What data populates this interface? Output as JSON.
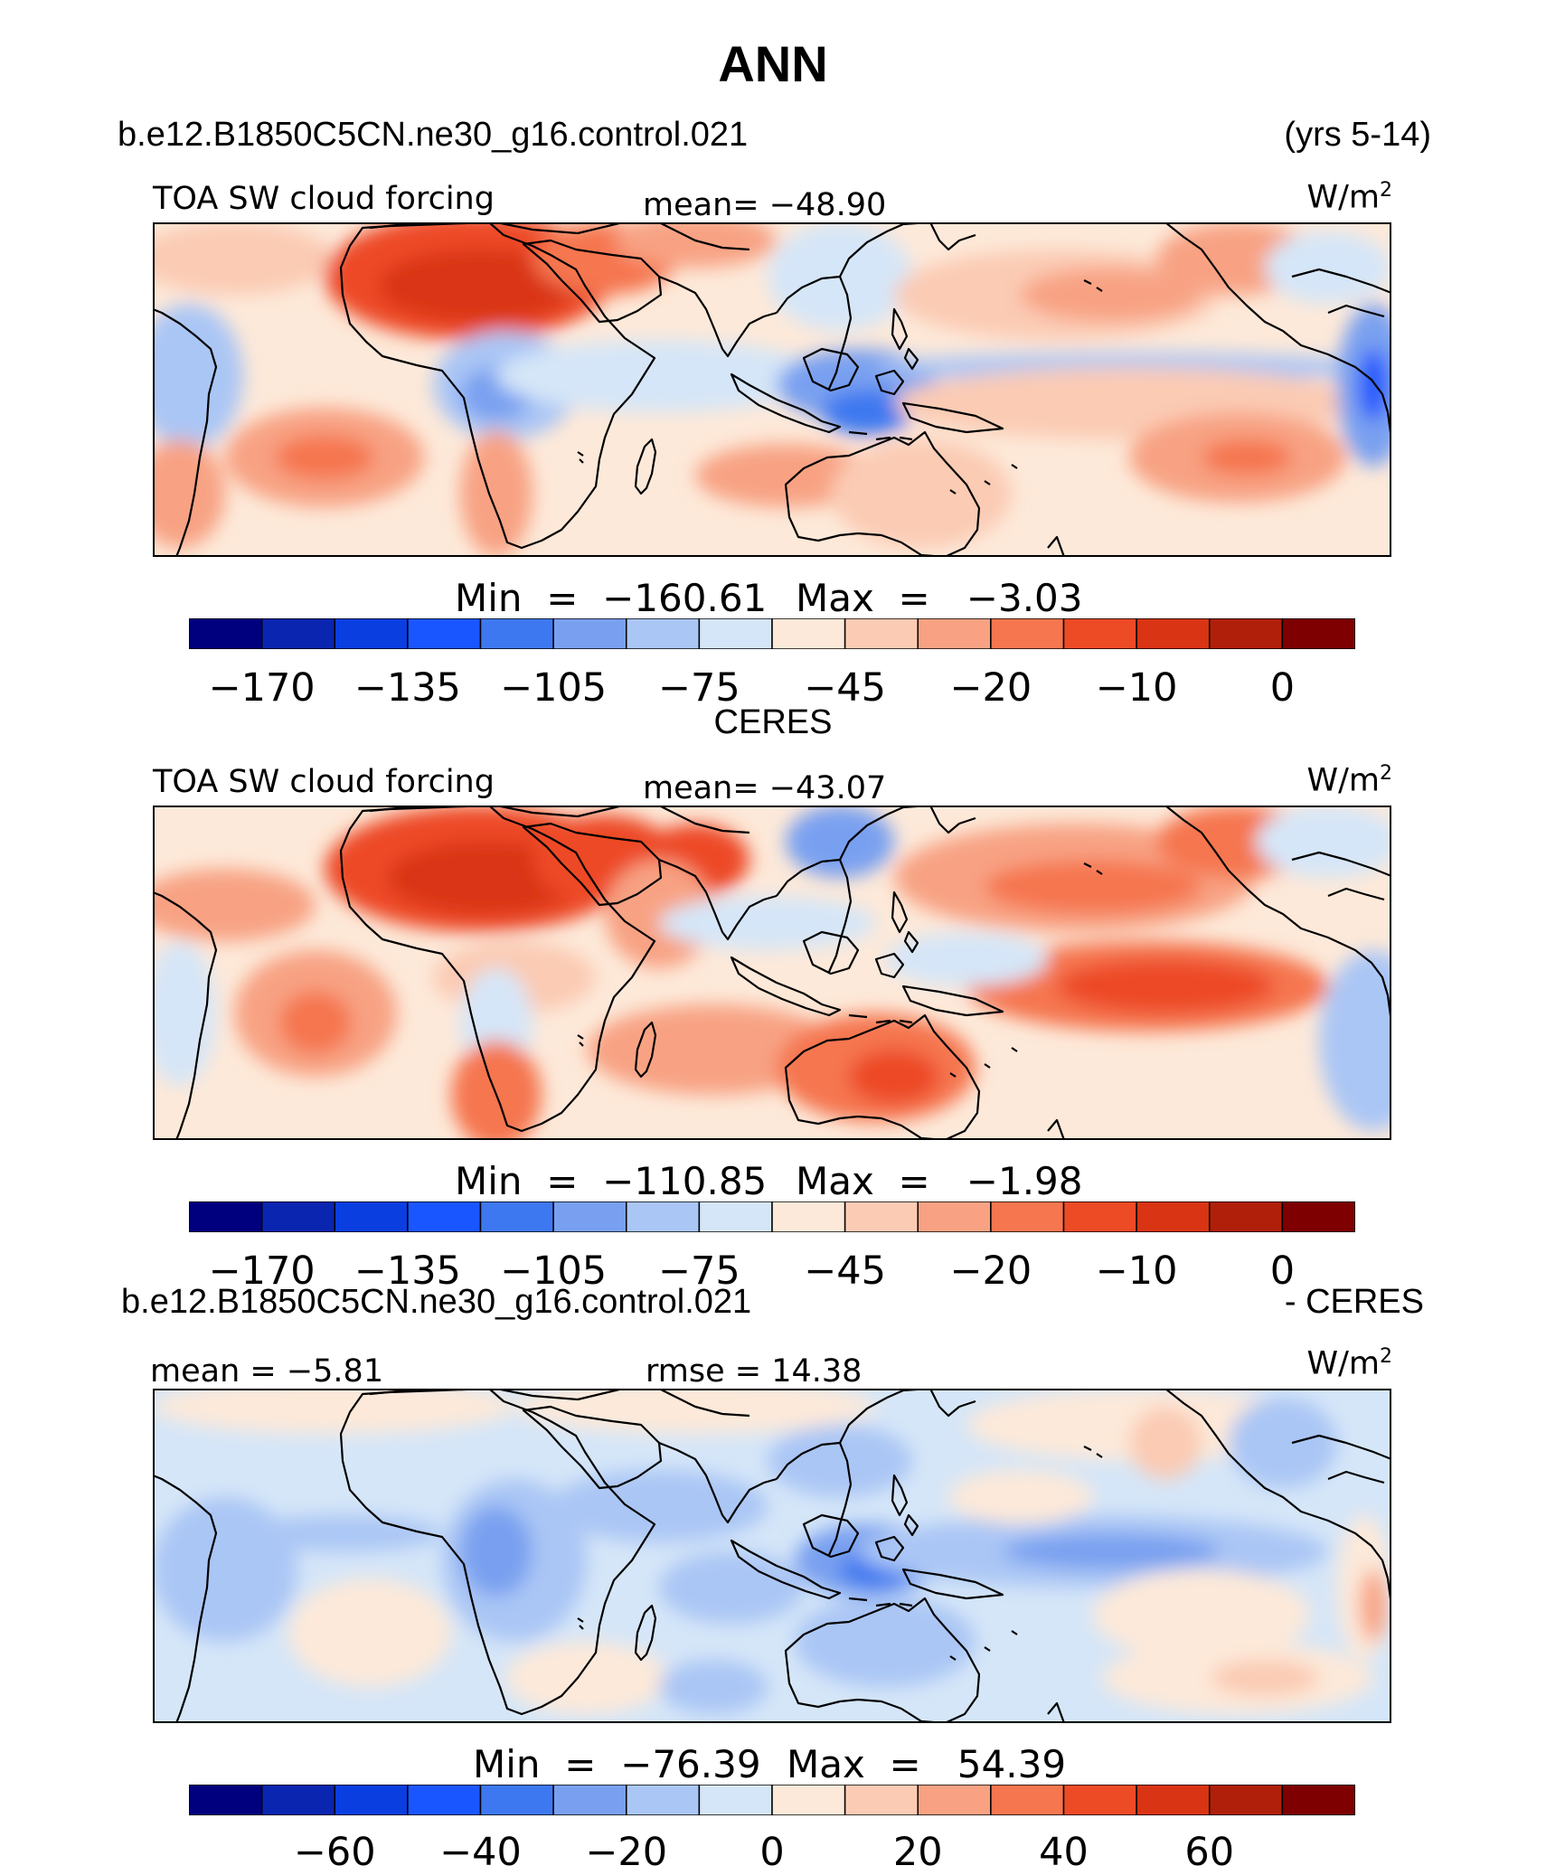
{
  "title": "ANN",
  "header": {
    "case_name": "b.e12.B1850C5CN.ne30_g16.control.021",
    "years": "(yrs 5-14)"
  },
  "colors": {
    "palette": [
      "#00007f",
      "#0a25b0",
      "#0a3ee0",
      "#1a56ff",
      "#3e78f0",
      "#79a0f0",
      "#aac6f5",
      "#d5e6f8",
      "#fde9d9",
      "#fbcbb4",
      "#f8a283",
      "#f5764f",
      "#ed4a26",
      "#d93413",
      "#b01f0a",
      "#7e0000"
    ],
    "coast": "#000000"
  },
  "panels": [
    {
      "id": "model",
      "variable": "TOA SW cloud forcing",
      "units": "W/m",
      "units_sup": "2",
      "stat_left": "",
      "stat_center": "mean=  −48.90",
      "min_label": "Min",
      "min_value": "−160.61",
      "max_label": "Max",
      "max_value": "−3.03",
      "colorbar_ticks": [
        "−170",
        "−135",
        "−105",
        "−75",
        "−45",
        "−20",
        "−10",
        "0"
      ]
    },
    {
      "id": "obs",
      "dataset_title": "CERES",
      "variable": "TOA SW cloud forcing",
      "units": "W/m",
      "units_sup": "2",
      "stat_left": "",
      "stat_center": "mean=  −43.07",
      "min_label": "Min",
      "min_value": "−110.85",
      "max_label": "Max",
      "max_value": "−1.98",
      "colorbar_ticks": [
        "−170",
        "−135",
        "−105",
        "−75",
        "−45",
        "−20",
        "−10",
        "0"
      ]
    },
    {
      "id": "diff",
      "case_name": "b.e12.B1850C5CN.ne30_g16.control.021",
      "diff_suffix": "- CERES",
      "units": "W/m",
      "units_sup": "2",
      "stat_left": "mean =   −5.81",
      "stat_center": "rmse =   14.38",
      "min_label": "Min",
      "min_value": "−76.39",
      "max_label": "Max",
      "max_value": "54.39",
      "colorbar_ticks": [
        "−60",
        "−40",
        "−20",
        "0",
        "20",
        "40",
        "60"
      ]
    }
  ]
}
